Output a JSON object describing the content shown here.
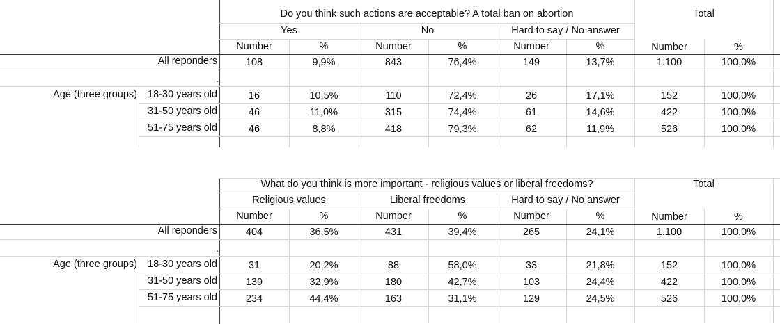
{
  "tables": [
    {
      "question": "Do you think such actions are acceptable? A total ban on abortion",
      "total_label": "Total",
      "answers": [
        "Yes",
        "No",
        "Hard to say / No answer"
      ],
      "subheaders": [
        "Number",
        "%",
        "Number",
        "%",
        "Number",
        "%",
        "Number",
        "%"
      ],
      "all_label": "All reponders",
      "all_values": [
        "108",
        "9,9%",
        "843",
        "76,4%",
        "149",
        "13,7%",
        "1.100",
        "100,0%"
      ],
      "dot": ".",
      "group_label": "Age (three groups)",
      "rows": [
        {
          "label": "18-30 years old",
          "values": [
            "16",
            "10,5%",
            "110",
            "72,4%",
            "26",
            "17,1%",
            "152",
            "100,0%"
          ]
        },
        {
          "label": "31-50 years old",
          "values": [
            "46",
            "11,0%",
            "315",
            "74,4%",
            "61",
            "14,6%",
            "422",
            "100,0%"
          ]
        },
        {
          "label": "51-75 years old",
          "values": [
            "46",
            "8,8%",
            "418",
            "79,3%",
            "62",
            "11,9%",
            "526",
            "100,0%"
          ]
        }
      ]
    },
    {
      "question": "What do you think is more important - religious values or liberal freedoms?",
      "total_label": "Total",
      "answers": [
        "Religious values",
        "Liberal freedoms",
        "Hard to say / No answer"
      ],
      "subheaders": [
        "Number",
        "%",
        "Number",
        "%",
        "Number",
        "%",
        "Number",
        "%"
      ],
      "all_label": "All reponders",
      "all_values": [
        "404",
        "36,5%",
        "431",
        "39,4%",
        "265",
        "24,1%",
        "1.100",
        "100,0%"
      ],
      "dot": ".",
      "group_label": "Age (three groups)",
      "rows": [
        {
          "label": "18-30 years old",
          "values": [
            "31",
            "20,2%",
            "88",
            "58,0%",
            "33",
            "21,8%",
            "152",
            "100,0%"
          ]
        },
        {
          "label": "31-50 years old",
          "values": [
            "139",
            "32,9%",
            "180",
            "42,7%",
            "103",
            "24,4%",
            "422",
            "100,0%"
          ]
        },
        {
          "label": "51-75 years old",
          "values": [
            "234",
            "44,4%",
            "163",
            "31,1%",
            "129",
            "24,5%",
            "526",
            "100,0%"
          ]
        }
      ]
    }
  ]
}
